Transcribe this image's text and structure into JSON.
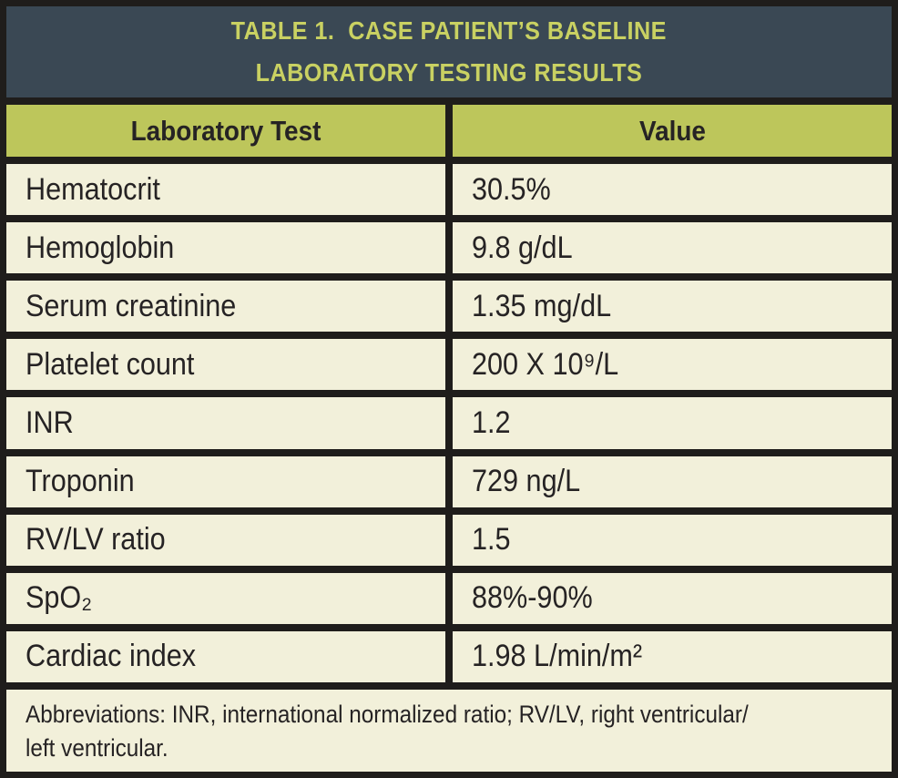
{
  "table": {
    "title_lines": [
      "TABLE 1.  CASE PATIENT’S BASELINE",
      "LABORATORY TESTING RESULTS"
    ],
    "columns": [
      "Laboratory Test",
      "Value"
    ],
    "rows": [
      {
        "test": "Hematocrit",
        "value": "30.5%"
      },
      {
        "test": "Hemoglobin",
        "value": "9.8 g/dL"
      },
      {
        "test": "Serum creatinine",
        "value": "1.35 mg/dL"
      },
      {
        "test": "Platelet count",
        "value": "200 X 10⁹/L"
      },
      {
        "test": "INR",
        "value": "1.2"
      },
      {
        "test": "Troponin",
        "value": "729 ng/L"
      },
      {
        "test": "RV/LV ratio",
        "value": "1.5"
      },
      {
        "test": "SpO₂",
        "value": "88%-90%"
      },
      {
        "test": "Cardiac index",
        "value": "1.98 L/min/m²"
      }
    ],
    "footnote_lines": [
      "Abbreviations: INR, international normalized ratio; RV/LV, right ventricular/",
      "left ventricular."
    ],
    "colors": {
      "title_bg": "#3a4854",
      "title_text": "#c9d162",
      "header_bg": "#bdc65b",
      "row_bg": "#f2f0da",
      "border": "#1f1d1b",
      "text": "#262324"
    }
  }
}
